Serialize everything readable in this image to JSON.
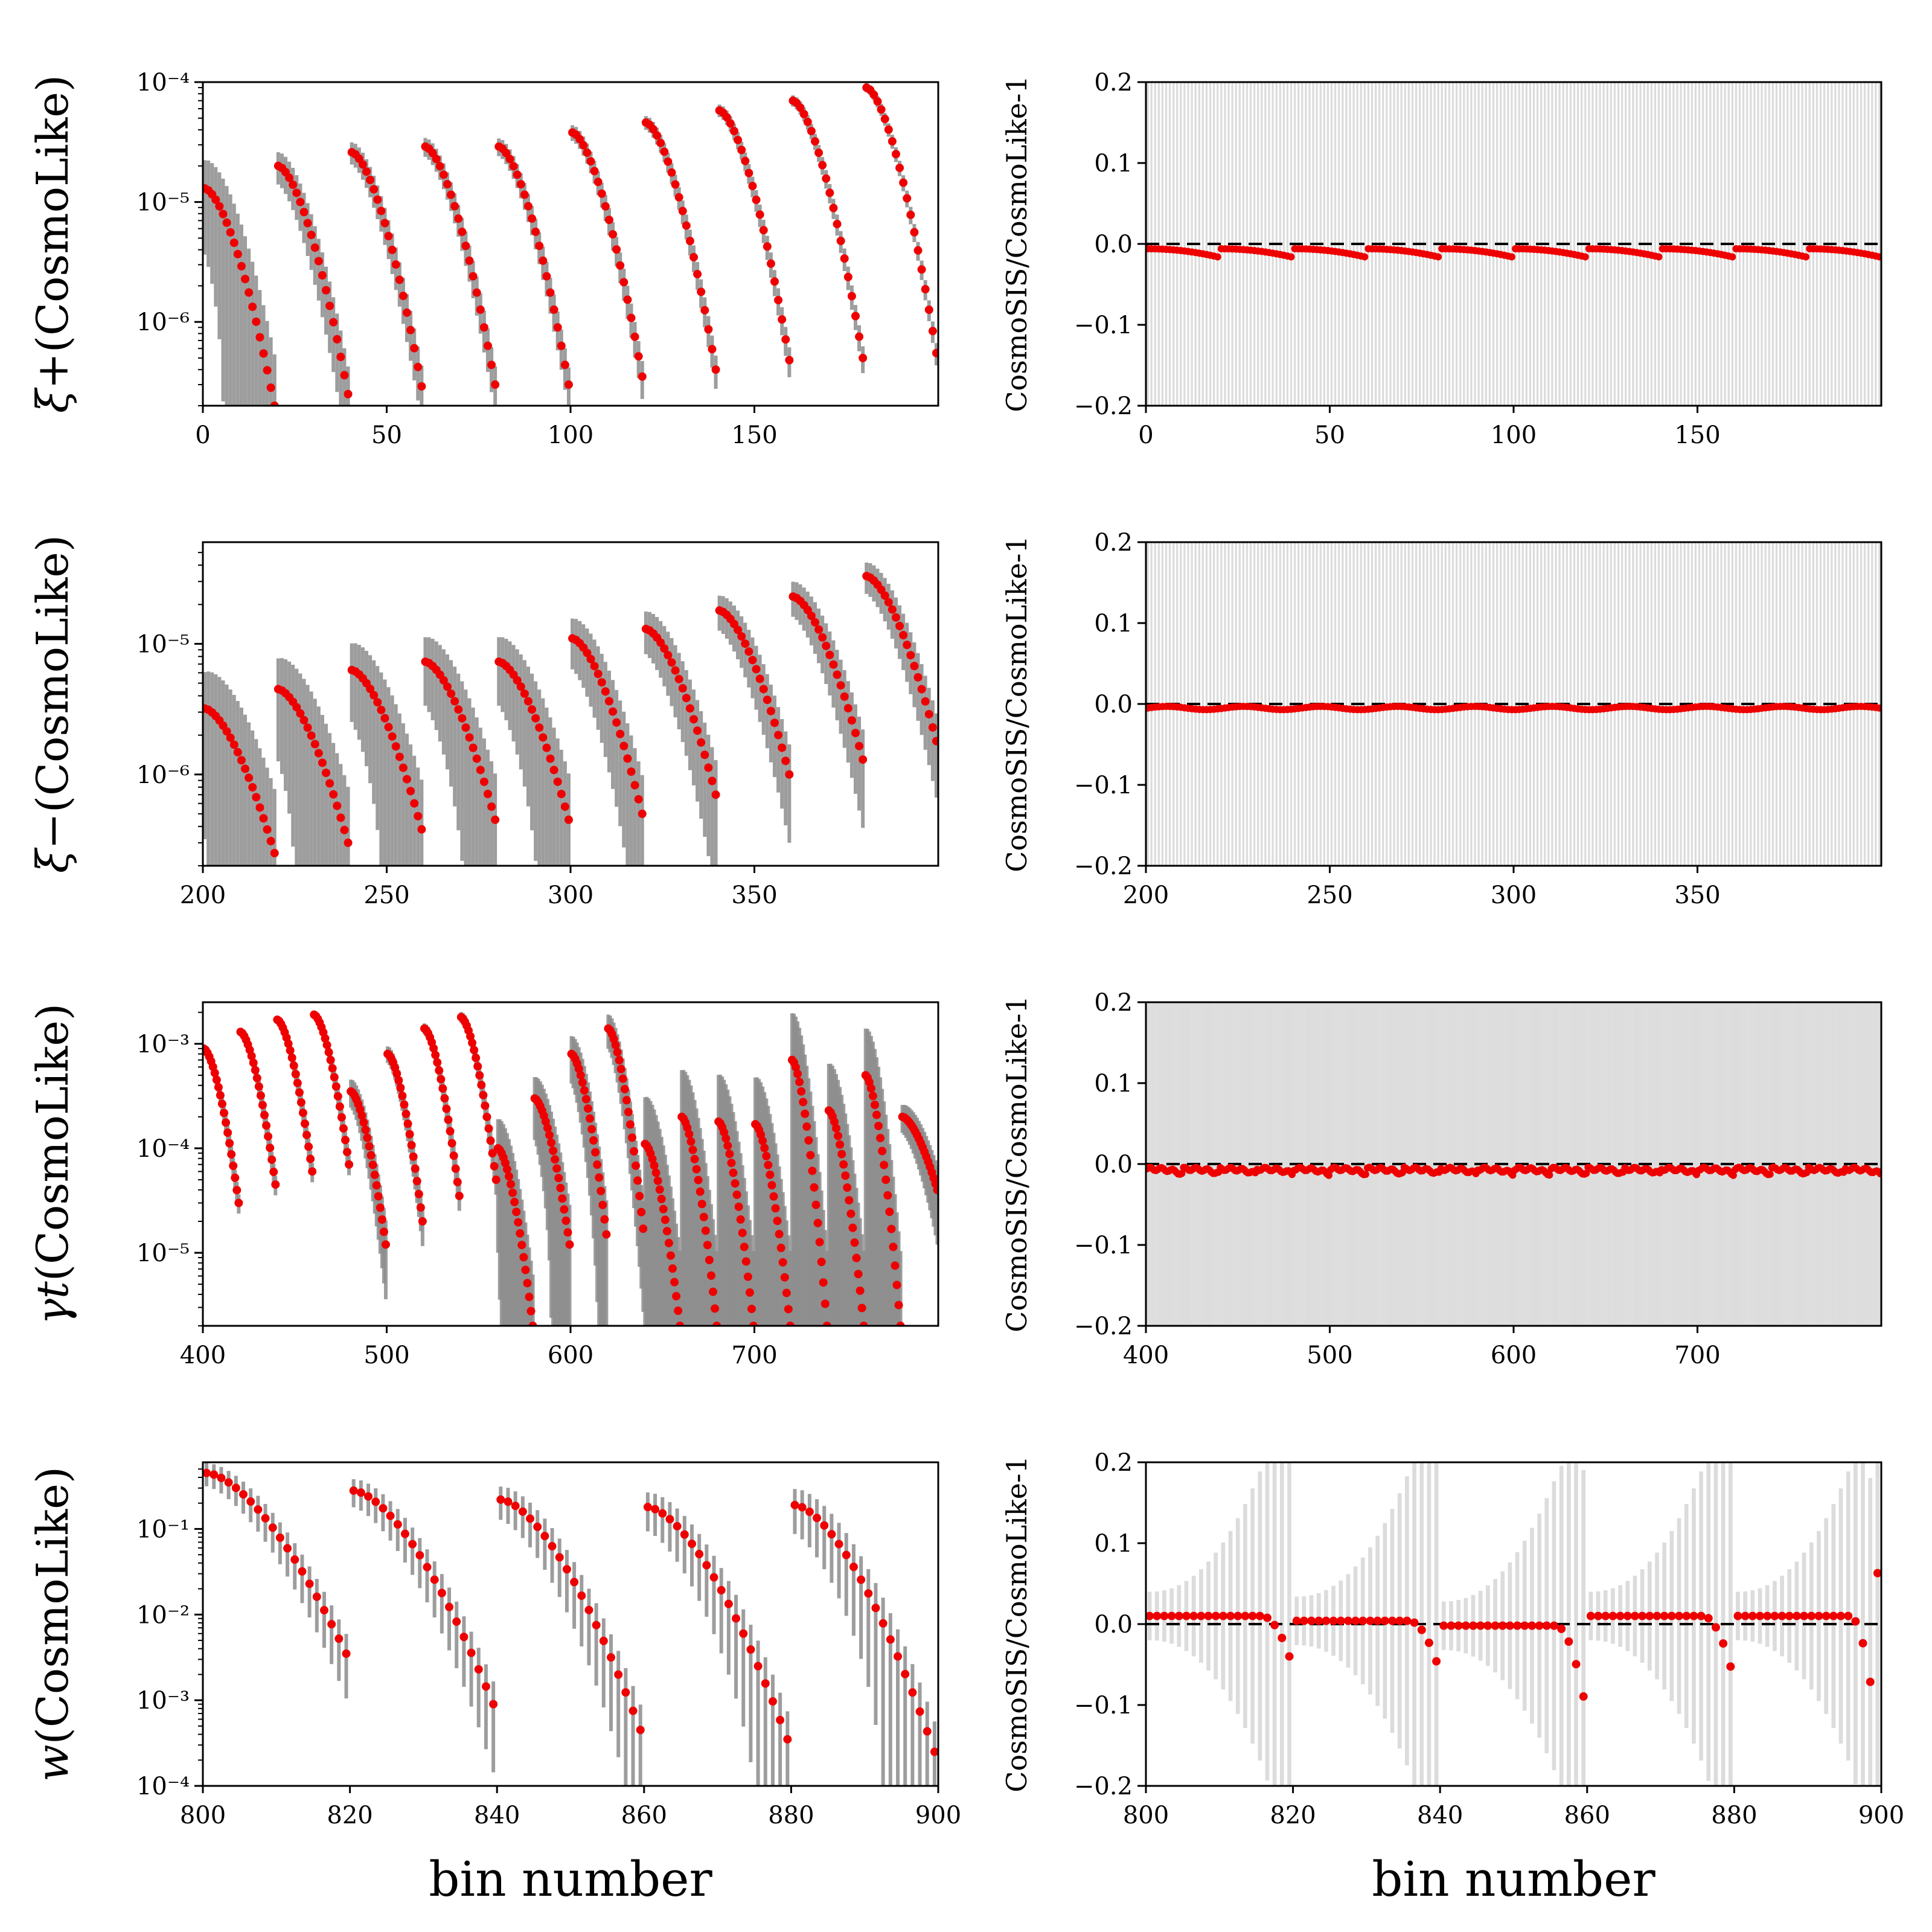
{
  "figure": {
    "xlabel": "bin number"
  },
  "chart_data": [
    {
      "id": "xip",
      "type": "scatter",
      "yscale": "log",
      "ylabel_sym": "ξ+",
      "ylabel_text": "(CosmoLike)",
      "xlim": [
        0,
        200
      ],
      "ylim": [
        2e-07,
        0.0001
      ],
      "xticks": [
        0,
        50,
        100,
        150
      ],
      "yticks": [
        {
          "v": 1e-06,
          "label": "10⁻⁶"
        },
        {
          "v": 1e-05,
          "label": "10⁻⁵"
        },
        {
          "v": 0.0001,
          "label": "10⁻⁴"
        }
      ],
      "series_model": {
        "start": 0,
        "groups": 10,
        "per": 20,
        "top": [
          1.3e-05,
          2e-05,
          2.6e-05,
          2.9e-05,
          2.9e-05,
          3.8e-05,
          4.6e-05,
          5.8e-05,
          7e-05,
          9e-05
        ],
        "bottom": [
          2e-07,
          2.5e-07,
          2.9e-07,
          3e-07,
          3e-07,
          3.5e-07,
          4e-07,
          4.8e-07,
          5e-07,
          5.5e-07
        ],
        "errfrac": [
          1.2,
          0.5,
          0.35,
          0.3,
          0.28,
          0.25,
          0.22,
          0.2,
          0.18,
          0.15
        ]
      }
    },
    {
      "id": "xim",
      "type": "scatter",
      "yscale": "log",
      "ylabel_sym": "ξ−",
      "ylabel_text": "(CosmoLike)",
      "xlim": [
        200,
        400
      ],
      "ylim": [
        2e-07,
        6e-05
      ],
      "xticks": [
        200,
        250,
        300,
        350
      ],
      "yticks": [
        {
          "v": 1e-06,
          "label": "10⁻⁶"
        },
        {
          "v": 1e-05,
          "label": "10⁻⁵"
        }
      ],
      "series_model": {
        "start": 200,
        "groups": 10,
        "per": 20,
        "top": [
          3.2e-06,
          4.5e-06,
          6.3e-06,
          7.3e-06,
          7.3e-06,
          1.1e-05,
          1.3e-05,
          1.8e-05,
          2.3e-05,
          3.3e-05
        ],
        "bottom": [
          2.5e-07,
          3e-07,
          3.8e-07,
          4.5e-07,
          4.5e-07,
          5e-07,
          7e-07,
          1e-06,
          1.3e-06,
          1.8e-06
        ],
        "errfrac": [
          1.5,
          1.2,
          1.0,
          0.9,
          0.9,
          0.7,
          0.6,
          0.5,
          0.5,
          0.45
        ]
      }
    },
    {
      "id": "gammat",
      "type": "scatter",
      "yscale": "log",
      "ylabel_sym": "γt",
      "ylabel_text": "(CosmoLike)",
      "xlim": [
        400,
        800
      ],
      "ylim": [
        2e-06,
        0.0025
      ],
      "xticks": [
        400,
        500,
        600,
        700
      ],
      "yticks": [
        {
          "v": 1e-05,
          "label": "10⁻⁵"
        },
        {
          "v": 0.0001,
          "label": "10⁻⁴"
        },
        {
          "v": 0.001,
          "label": "10⁻³"
        }
      ],
      "series_model": {
        "start": 400,
        "groups": 20,
        "per": 20,
        "top": [
          0.0009,
          0.0013,
          0.0017,
          0.0019,
          0.00035,
          0.0008,
          0.0014,
          0.0018,
          0.0001,
          0.0003,
          0.0008,
          0.0014,
          0.00011,
          0.0002,
          0.00018,
          0.00017,
          0.0007,
          0.00023,
          0.0005,
          0.0002
        ],
        "bottom": [
          3e-05,
          4.5e-05,
          6e-05,
          7e-05,
          1.2e-05,
          2e-05,
          3.5e-05,
          5e-05,
          2e-06,
          1.2e-05,
          1.5e-05,
          1.7e-05,
          2e-06,
          2e-06,
          2e-06,
          2e-06,
          2e-06,
          2e-06,
          2e-06,
          4e-05
        ],
        "errfrac": [
          0.15,
          0.15,
          0.15,
          0.15,
          0.5,
          0.3,
          0.2,
          0.2,
          1.5,
          1.0,
          0.8,
          0.6,
          3.0,
          3.0,
          3.0,
          3.0,
          3.0,
          3.0,
          3.0,
          0.5
        ]
      }
    },
    {
      "id": "w",
      "type": "scatter",
      "yscale": "log",
      "ylabel_sym": "w",
      "ylabel_text": "(CosmoLike)",
      "xlim": [
        800,
        900
      ],
      "ylim": [
        0.0001,
        0.6
      ],
      "xticks": [
        800,
        820,
        840,
        860,
        880,
        900
      ],
      "yticks": [
        {
          "v": 0.0001,
          "label": "10⁻⁴"
        },
        {
          "v": 0.001,
          "label": "10⁻³"
        },
        {
          "v": 0.01,
          "label": "10⁻²"
        },
        {
          "v": 0.1,
          "label": "10⁻¹"
        }
      ],
      "series_model": {
        "start": 800,
        "groups": 5,
        "per": 20,
        "top": [
          0.45,
          0.28,
          0.22,
          0.18,
          0.19
        ],
        "bottom": [
          0.0035,
          0.0009,
          0.00045,
          0.00035,
          0.00025
        ],
        "errfrac": [
          0.5,
          0.6,
          0.7,
          0.8,
          0.9
        ]
      }
    }
  ],
  "ratio_panels": [
    {
      "id": "xip_ratio",
      "ylabel": "CosmoSIS/CosmoLike-1",
      "xlim": [
        0,
        200
      ],
      "ylim": [
        -0.2,
        0.2
      ],
      "xticks": [
        0,
        50,
        100,
        150
      ],
      "yticks": [
        -0.2,
        -0.1,
        0.0,
        0.1,
        0.2
      ],
      "yticklabels": [
        "−0.2",
        "−0.1",
        "0.0",
        "0.1",
        "0.2"
      ]
    },
    {
      "id": "xim_ratio",
      "ylabel": "CosmoSIS/CosmoLike-1",
      "xlim": [
        200,
        400
      ],
      "ylim": [
        -0.2,
        0.2
      ],
      "xticks": [
        200,
        250,
        300,
        350
      ],
      "yticks": [
        -0.2,
        -0.1,
        0.0,
        0.1,
        0.2
      ],
      "yticklabels": [
        "−0.2",
        "−0.1",
        "0.0",
        "0.1",
        "0.2"
      ]
    },
    {
      "id": "gammat_ratio",
      "ylabel": "CosmoSIS/CosmoLike-1",
      "xlim": [
        400,
        800
      ],
      "ylim": [
        -0.2,
        0.2
      ],
      "xticks": [
        400,
        500,
        600,
        700
      ],
      "yticks": [
        -0.2,
        -0.1,
        0.0,
        0.1,
        0.2
      ],
      "yticklabels": [
        "−0.2",
        "−0.1",
        "0.0",
        "0.1",
        "0.2"
      ]
    },
    {
      "id": "w_ratio",
      "ylabel": "CosmoSIS/CosmoLike-1",
      "xlim": [
        800,
        900
      ],
      "ylim": [
        -0.2,
        0.2
      ],
      "xticks": [
        800,
        820,
        840,
        860,
        880,
        900
      ],
      "yticks": [
        -0.2,
        -0.1,
        0.0,
        0.1,
        0.2
      ],
      "yticklabels": [
        "−0.2",
        "−0.1",
        "0.0",
        "0.1",
        "0.2"
      ]
    }
  ],
  "colors": {
    "points": "#ee0000",
    "errorbar_left": "#8c8c8c",
    "errorbar_right": "#dcdcdc",
    "zero_line": "#000000"
  }
}
